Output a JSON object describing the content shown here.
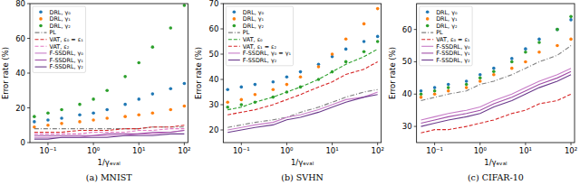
{
  "chart_data": [
    {
      "type": "line",
      "title": "(a) MNIST",
      "xlabel": "1/γₑᵥₐₗ",
      "ylabel": "Error rate (%)",
      "log": "x",
      "grid": false,
      "legend": "upper left",
      "x": [
        0.05,
        0.1,
        0.2,
        0.5,
        1,
        2,
        5,
        10,
        20,
        50,
        100
      ],
      "xlim": [
        0.04,
        120
      ],
      "xticks": [
        {
          "value": 0.1,
          "label": "10⁻¹"
        },
        {
          "value": 1,
          "label": "10⁰"
        },
        {
          "value": 10,
          "label": "10¹"
        },
        {
          "value": 100,
          "label": "10²"
        }
      ],
      "ylim": [
        0,
        80
      ],
      "yticks": [
        0,
        20,
        40,
        60,
        80
      ],
      "series": [
        {
          "name": "DRL, γ₀",
          "color": "#1f77b4",
          "type": "scatter",
          "marker": "circle",
          "line_style": "none",
          "values": [
            12,
            13,
            14,
            16,
            17,
            19,
            22,
            25,
            28,
            31,
            34
          ]
        },
        {
          "name": "DRL, γ₁",
          "color": "#ff7f0e",
          "type": "scatter",
          "marker": "circle",
          "line_style": "none",
          "values": [
            9,
            10,
            11,
            12,
            13,
            14,
            15,
            16,
            17,
            19,
            21
          ]
        },
        {
          "name": "DRL, γ₂",
          "color": "#2ca02c",
          "type": "scatter",
          "marker": "circle",
          "line_style": "none",
          "values": [
            15,
            17,
            19,
            22,
            25,
            30,
            38,
            46,
            55,
            66,
            79
          ]
        },
        {
          "name": "PL",
          "color": "#7f7f7f",
          "type": "line",
          "line_style": "dashdot",
          "values": [
            8,
            8,
            8,
            8,
            8,
            8,
            8,
            8,
            9,
            9,
            9
          ]
        },
        {
          "name": "VAT, ε₀ = ε₁",
          "color": "#d62728",
          "type": "line",
          "line_style": "dashed",
          "values": [
            6,
            6,
            6,
            7,
            7,
            7,
            8,
            8,
            9,
            9,
            10
          ]
        },
        {
          "name": "VAT, ε₂",
          "color": "#e377c2",
          "type": "line",
          "line_style": "dashed",
          "values": [
            5,
            5,
            5,
            5,
            6,
            6,
            6,
            7,
            7,
            8,
            8
          ]
        },
        {
          "name": "F-SSDRL, γ₀",
          "color": "#c77cc7",
          "type": "line",
          "line_style": "solid",
          "values": [
            3,
            3,
            3,
            3,
            4,
            4,
            4,
            5,
            5,
            6,
            7
          ]
        },
        {
          "name": "F-SSDRL, γ₁",
          "color": "#a14fa8",
          "type": "line",
          "line_style": "solid",
          "values": [
            4,
            4,
            4,
            4,
            4,
            5,
            5,
            5,
            6,
            6,
            7
          ]
        },
        {
          "name": "F-SSDRL, γ₂",
          "color": "#6b3a8c",
          "type": "line",
          "line_style": "solid",
          "values": [
            2,
            2,
            3,
            3,
            3,
            3,
            4,
            4,
            4,
            5,
            5
          ]
        }
      ]
    },
    {
      "type": "line",
      "title": "(b) SVHN",
      "xlabel": "1/γₑᵥₐₗ",
      "ylabel": "Error rate (%)",
      "log": "x",
      "grid": false,
      "legend": "upper left",
      "x": [
        0.05,
        0.1,
        0.2,
        0.5,
        1,
        2,
        5,
        10,
        20,
        50,
        100
      ],
      "xlim": [
        0.04,
        120
      ],
      "xticks": [
        {
          "value": 0.1,
          "label": "10⁻¹"
        },
        {
          "value": 1,
          "label": "10⁰"
        },
        {
          "value": 10,
          "label": "10¹"
        },
        {
          "value": 100,
          "label": "10²"
        }
      ],
      "ylim": [
        15,
        70
      ],
      "yticks": [
        20,
        30,
        40,
        50,
        60,
        70
      ],
      "series": [
        {
          "name": "DRL, γ₀",
          "color": "#1f77b4",
          "type": "scatter",
          "marker": "circle",
          "line_style": "none",
          "values": [
            36,
            37,
            38,
            39,
            41,
            43,
            46,
            49,
            52,
            55,
            57
          ]
        },
        {
          "name": "DRL, γ₁",
          "color": "#ff7f0e",
          "type": "scatter",
          "marker": "circle",
          "line_style": "none",
          "values": [
            31,
            32,
            34,
            36,
            38,
            41,
            45,
            50,
            56,
            62,
            68
          ]
        },
        {
          "name": "DRL, γ₂",
          "color": "#2ca02c",
          "type": "scatter",
          "marker": "circle",
          "line_style": "none",
          "values": [
            29,
            30,
            31,
            33,
            35,
            37,
            40,
            43,
            47,
            51,
            55
          ]
        },
        {
          "name": "PL",
          "color": "#7f7f7f",
          "type": "line",
          "line_style": "dashdot",
          "values": [
            21,
            22,
            23,
            24,
            25,
            27,
            29,
            31,
            33,
            35,
            36
          ]
        },
        {
          "name": "VAT, ε₀",
          "color": "#2ca02c",
          "type": "line",
          "line_style": "dashed",
          "values": [
            28,
            29,
            31,
            33,
            35,
            37,
            40,
            43,
            46,
            49,
            52
          ]
        },
        {
          "name": "VAT, ε₁ = ε₂",
          "color": "#d62728",
          "type": "line",
          "line_style": "dashed",
          "values": [
            26,
            27,
            28,
            30,
            32,
            34,
            37,
            39,
            42,
            44,
            47
          ]
        },
        {
          "name": "F-SSDRL, γ₀ = γ₁",
          "color": "#c77cc7",
          "type": "line",
          "line_style": "solid",
          "values": [
            20,
            21,
            22,
            23,
            25,
            26,
            28,
            30,
            32,
            33,
            35
          ]
        },
        {
          "name": "F-SSDRL, γ₂",
          "color": "#6b3a8c",
          "type": "line",
          "line_style": "solid",
          "values": [
            19,
            20,
            21,
            22,
            24,
            25,
            27,
            29,
            31,
            33,
            34
          ]
        }
      ]
    },
    {
      "type": "line",
      "title": "(c) CIFAR-10",
      "xlabel": "1/γₑᵥₐₗ",
      "ylabel": "Error rate (%)",
      "log": "x",
      "grid": false,
      "legend": "upper left",
      "x": [
        0.05,
        0.1,
        0.2,
        0.5,
        1,
        2,
        5,
        10,
        20,
        50,
        100
      ],
      "xlim": [
        0.04,
        120
      ],
      "xticks": [
        {
          "value": 0.1,
          "label": "10⁻¹"
        },
        {
          "value": 1,
          "label": "10⁰"
        },
        {
          "value": 10,
          "label": "10¹"
        },
        {
          "value": 100,
          "label": "10²"
        }
      ],
      "ylim": [
        25,
        68
      ],
      "yticks": [
        30,
        40,
        50,
        60
      ],
      "series": [
        {
          "name": "DRL, γ₀",
          "color": "#1f77b4",
          "type": "scatter",
          "marker": "circle",
          "line_style": "none",
          "values": [
            41,
            42,
            43,
            44,
            46,
            48,
            51,
            54,
            57,
            60,
            63
          ]
        },
        {
          "name": "DRL, γ₁",
          "color": "#ff7f0e",
          "type": "scatter",
          "marker": "circle",
          "line_style": "none",
          "values": [
            39,
            40,
            41,
            42,
            44,
            46,
            48,
            50,
            53,
            55,
            57
          ]
        },
        {
          "name": "DRL, γ₂",
          "color": "#2ca02c",
          "type": "scatter",
          "marker": "circle",
          "line_style": "none",
          "values": [
            40,
            41,
            42,
            43,
            45,
            47,
            50,
            53,
            56,
            60,
            64
          ]
        },
        {
          "name": "PL",
          "color": "#7f7f7f",
          "type": "line",
          "line_style": "dashdot",
          "values": [
            38,
            39,
            40,
            41,
            43,
            44,
            46,
            48,
            50,
            52,
            55
          ]
        },
        {
          "name": "VAT, ε₀ = ε₁",
          "color": "#d62728",
          "type": "line",
          "line_style": "dashed",
          "values": [
            28,
            29,
            29,
            30,
            31,
            32,
            34,
            35,
            37,
            38,
            40
          ]
        },
        {
          "name": "F-SSDRL, γ₀",
          "color": "#c77cc7",
          "type": "line",
          "line_style": "solid",
          "values": [
            32,
            33,
            34,
            35,
            36,
            38,
            40,
            42,
            44,
            46,
            48
          ]
        },
        {
          "name": "F-SSDRL, γ₁",
          "color": "#a14fa8",
          "type": "line",
          "line_style": "solid",
          "values": [
            31,
            32,
            33,
            34,
            35,
            37,
            39,
            41,
            43,
            45,
            47
          ]
        },
        {
          "name": "F-SSDRL, γ₂",
          "color": "#6b3a8c",
          "type": "line",
          "line_style": "solid",
          "values": [
            30,
            31,
            32,
            33,
            34,
            36,
            38,
            40,
            42,
            44,
            46
          ]
        }
      ]
    }
  ]
}
